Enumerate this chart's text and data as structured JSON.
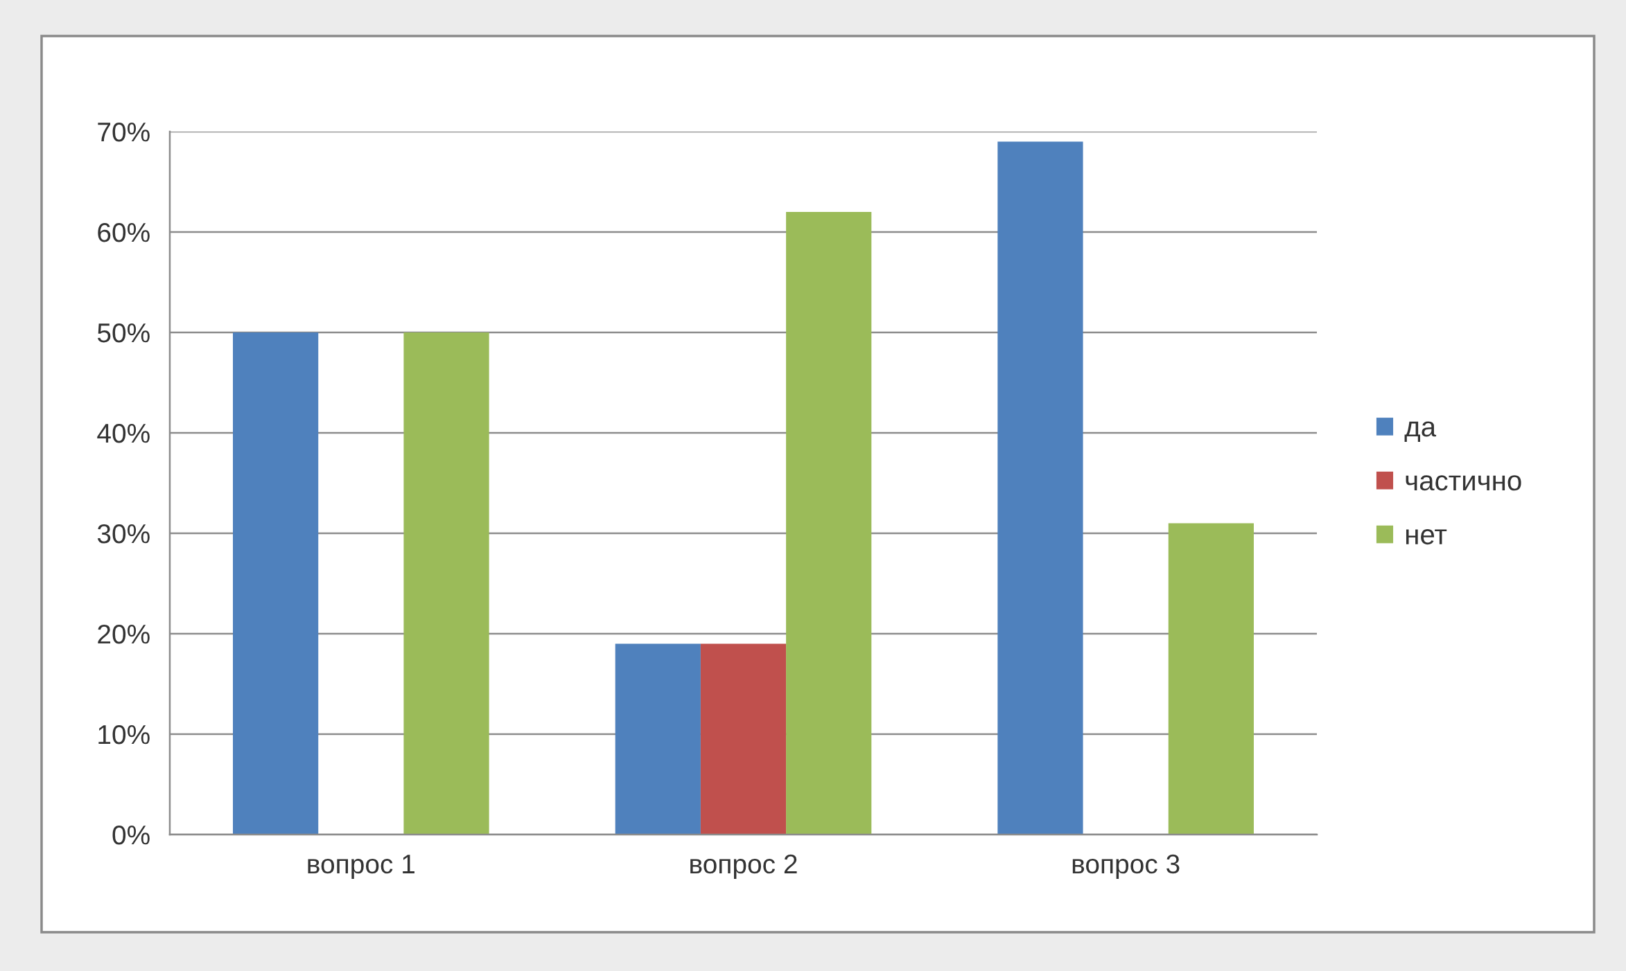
{
  "chart_data": {
    "type": "bar",
    "categories": [
      "вопрос 1",
      "вопрос 2",
      "вопрос 3"
    ],
    "series": [
      {
        "name": "да",
        "color": "#4f81bd",
        "values": [
          50,
          19,
          69
        ]
      },
      {
        "name": "частично",
        "color": "#c0504d",
        "values": [
          0,
          19,
          0
        ]
      },
      {
        "name": "нет",
        "color": "#9bbb59",
        "values": [
          50,
          62,
          31
        ]
      }
    ],
    "ylim": [
      0,
      70
    ],
    "yticks": [
      {
        "value": 0,
        "label": "0%"
      },
      {
        "value": 10,
        "label": "10%"
      },
      {
        "value": 20,
        "label": "20%"
      },
      {
        "value": 30,
        "label": "30%"
      },
      {
        "value": 40,
        "label": "40%"
      },
      {
        "value": 50,
        "label": "50%"
      },
      {
        "value": 60,
        "label": "60%"
      },
      {
        "value": 70,
        "label": "70%"
      }
    ],
    "grid": "y",
    "legend": "right"
  }
}
